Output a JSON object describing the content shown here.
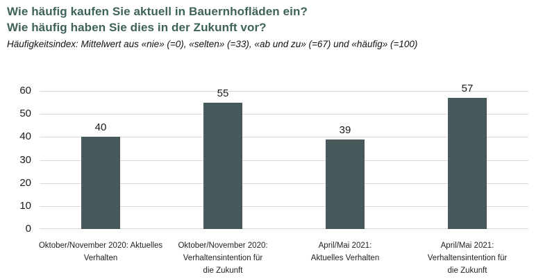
{
  "header": {
    "title_line1": "Wie häufig kaufen Sie aktuell in Bauernhofläden ein?",
    "title_line2": "Wie häufig haben Sie dies in der Zukunft vor?",
    "subtitle": "Häufigkeitsindex: Mittelwert aus «nie» (=0), «selten» (=33), «ab und zu» (=67) und «häufig» (=100)"
  },
  "colors": {
    "title": "#3e615a",
    "bar": "#48595b",
    "gridline": "#d9d9d9",
    "text": "#1a1a1a"
  },
  "chart_data": {
    "type": "bar",
    "title": "Wie häufig kaufen Sie aktuell in Bauernhofläden ein? Wie häufig haben Sie dies in der Zukunft vor?",
    "subtitle": "Häufigkeitsindex: Mittelwert aus «nie» (=0), «selten» (=33), «ab und zu» (=67) und «häufig» (=100)",
    "categories": [
      "Oktober/November 2020: Aktuelles\nVerhalten",
      "Oktober/November 2020:\nVerhaltensintention für\ndie Zukunft",
      "April/Mai 2021:\nAktuelles Verhalten",
      "April/Mai 2021:\nVerhaltensintention für\ndie Zukunft"
    ],
    "values": [
      40,
      55,
      39,
      57
    ],
    "xlabel": "",
    "ylabel": "",
    "ylim": [
      0,
      60
    ],
    "yticks": [
      0,
      10,
      20,
      30,
      40,
      50,
      60
    ],
    "grid": true,
    "legend": false,
    "value_labels": true
  }
}
